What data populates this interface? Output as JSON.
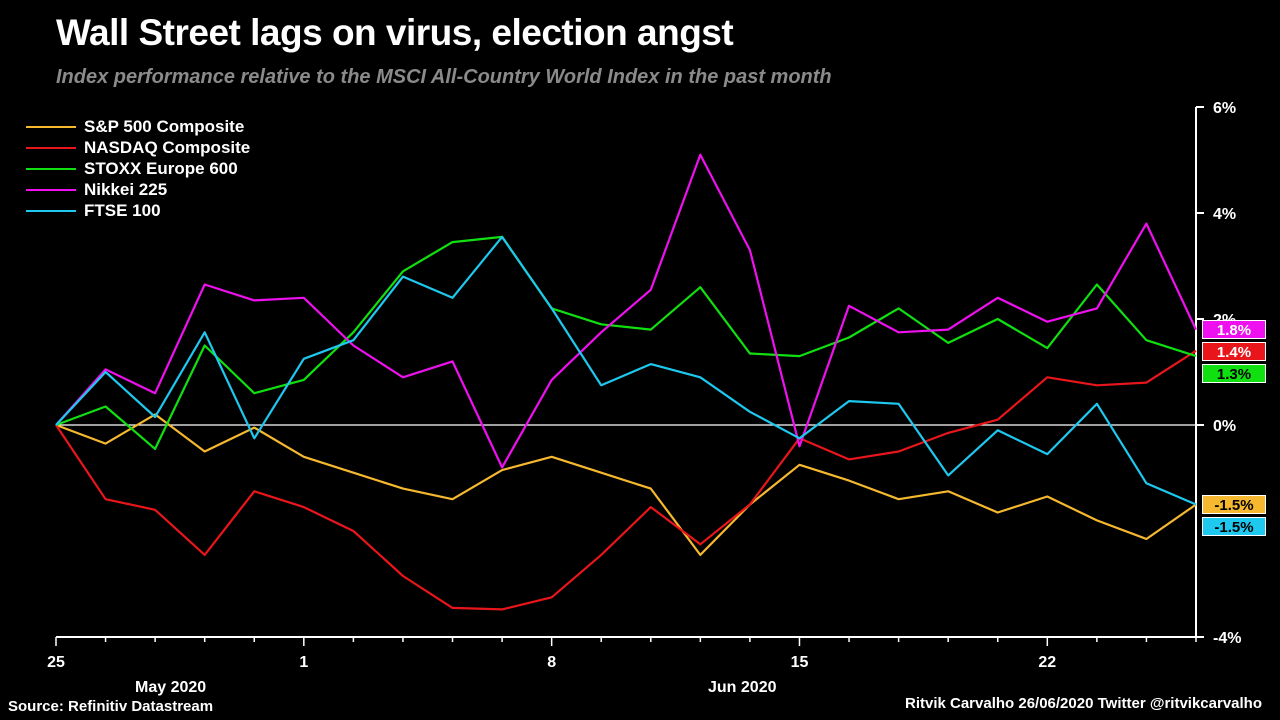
{
  "title": "Wall Street lags on virus, election angst",
  "subtitle": "Index performance relative to the MSCI All-Country World Index in the past month",
  "source": "Source: Refinitiv Datastream",
  "credit": "Ritvik Carvalho 26/06/2020 Twitter @ritvikcarvalho",
  "months": [
    {
      "label": "May 2020"
    },
    {
      "label": "Jun 2020"
    }
  ],
  "chart_data": {
    "type": "line",
    "title": "Wall Street lags on virus, election angst",
    "subtitle": "Index performance relative to the MSCI All-Country World Index in the past month",
    "x_tick_labels": [
      "25",
      "1",
      "8",
      "15",
      "22"
    ],
    "x_tick_indices": [
      0,
      5,
      10,
      15,
      20
    ],
    "y_tick_labels": [
      "6%",
      "4%",
      "2%",
      "0%",
      "-4%"
    ],
    "y_ticks": [
      6,
      4,
      2,
      0,
      -4
    ],
    "ylim": [
      -4,
      6
    ],
    "axis_position": "right",
    "legend_position": "top-left",
    "zero_line": true,
    "series": [
      {
        "name": "S&P 500 Composite",
        "color": "#f5b82e",
        "values": [
          0,
          -0.35,
          0.2,
          -0.5,
          -0.05,
          -0.6,
          -0.9,
          -1.2,
          -1.4,
          -0.85,
          -0.6,
          -0.9,
          -1.2,
          -2.45,
          -1.5,
          -0.75,
          -1.05,
          -1.4,
          -1.25,
          -1.65,
          -1.35,
          -1.8,
          -2.15,
          -1.5
        ],
        "end_label": "-1.5%"
      },
      {
        "name": "NASDAQ Composite",
        "color": "#e8161b",
        "values": [
          0,
          -1.4,
          -1.6,
          -2.45,
          -1.25,
          -1.55,
          -2.0,
          -2.85,
          -3.45,
          -3.48,
          -3.25,
          -2.45,
          -1.55,
          -2.25,
          -1.5,
          -0.25,
          -0.65,
          -0.5,
          -0.15,
          0.1,
          0.9,
          0.75,
          0.8,
          1.4
        ],
        "end_label": "1.4%"
      },
      {
        "name": "STOXX Europe 600",
        "color": "#10e010",
        "values": [
          0,
          0.35,
          -0.45,
          1.5,
          0.6,
          0.85,
          1.75,
          2.9,
          3.45,
          3.55,
          2.2,
          1.9,
          1.8,
          2.6,
          1.35,
          1.3,
          1.65,
          2.2,
          1.55,
          2.0,
          1.45,
          2.65,
          1.6,
          1.3
        ],
        "end_label": "1.3%"
      },
      {
        "name": "Nikkei 225",
        "color": "#ee10ee",
        "values": [
          0,
          1.05,
          0.6,
          2.65,
          2.35,
          2.4,
          1.5,
          0.9,
          1.2,
          -0.8,
          0.85,
          1.75,
          2.55,
          5.1,
          3.3,
          -0.4,
          2.25,
          1.75,
          1.8,
          2.4,
          1.95,
          2.2,
          3.8,
          1.8
        ],
        "end_label": "1.8%"
      },
      {
        "name": "FTSE 100",
        "color": "#1ec8ee",
        "values": [
          0,
          1.0,
          0.15,
          1.75,
          -0.25,
          1.25,
          1.6,
          2.8,
          2.4,
          3.55,
          2.2,
          0.75,
          1.15,
          0.9,
          0.25,
          -0.25,
          0.45,
          0.4,
          -0.95,
          -0.1,
          -0.55,
          0.4,
          -1.1,
          -1.5
        ],
        "end_label": "-1.5%"
      }
    ]
  }
}
